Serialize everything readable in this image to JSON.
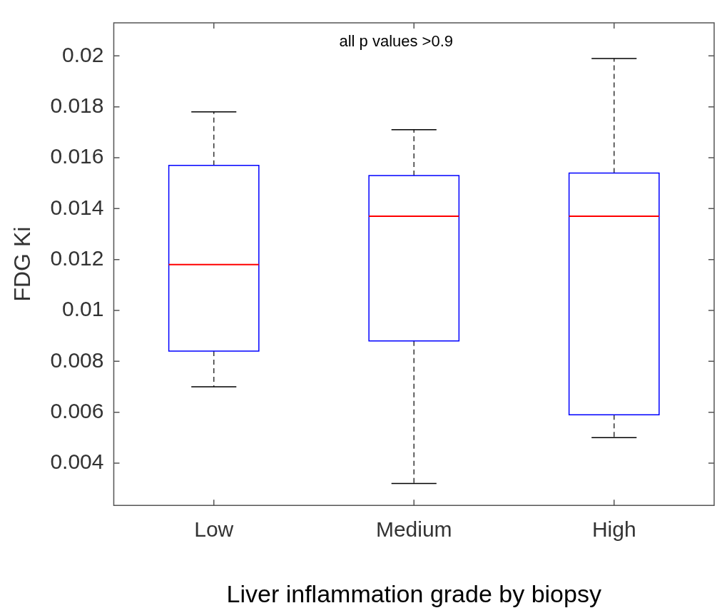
{
  "chart_data": {
    "type": "box",
    "xlabel": "Liver inflammation grade by biopsy",
    "ylabel": "FDG Ki",
    "annotations": [
      "all p values >0.9"
    ],
    "categories": [
      "Low",
      "Medium",
      "High"
    ],
    "color": "#0000ff",
    "boxes": [
      {
        "low": 0.007,
        "q1": 0.0084,
        "median": 0.0118,
        "q3": 0.0157,
        "high": 0.0178
      },
      {
        "low": 0.0032,
        "q1": 0.0088,
        "median": 0.0137,
        "q3": 0.0153,
        "high": 0.0171
      },
      {
        "low": 0.005,
        "q1": 0.0059,
        "median": 0.0137,
        "q3": 0.0154,
        "high": 0.0199
      }
    ],
    "ylim": [
      0.00234,
      0.0213
    ],
    "yticks": [
      0.004,
      0.006,
      0.008,
      0.01,
      0.012,
      0.014,
      0.016,
      0.018,
      0.02
    ],
    "grid": false,
    "legend": false
  }
}
